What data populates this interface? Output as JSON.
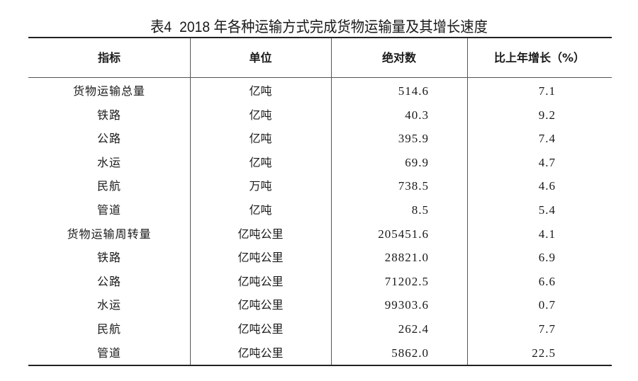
{
  "title": {
    "label": "表4",
    "text": "2018 年各种运输方式完成货物运输量及其增长速度"
  },
  "table": {
    "headers": [
      "指标",
      "单位",
      "绝对数",
      "比上年增长（%）"
    ],
    "rows": [
      [
        "货物运输总量",
        "亿吨",
        "514.6",
        "7.1"
      ],
      [
        "铁路",
        "亿吨",
        "40.3",
        "9.2"
      ],
      [
        "公路",
        "亿吨",
        "395.9",
        "7.4"
      ],
      [
        "水运",
        "亿吨",
        "69.9",
        "4.7"
      ],
      [
        "民航",
        "万吨",
        "738.5",
        "4.6"
      ],
      [
        "管道",
        "亿吨",
        "8.5",
        "5.4"
      ],
      [
        "货物运输周转量",
        "亿吨公里",
        "205451.6",
        "4.1"
      ],
      [
        "铁路",
        "亿吨公里",
        "28821.0",
        "6.9"
      ],
      [
        "公路",
        "亿吨公里",
        "71202.5",
        "6.6"
      ],
      [
        "水运",
        "亿吨公里",
        "99303.6",
        "0.7"
      ],
      [
        "民航",
        "亿吨公里",
        "262.4",
        "7.7"
      ],
      [
        "管道",
        "亿吨公里",
        "5862.0",
        "22.5"
      ]
    ]
  }
}
